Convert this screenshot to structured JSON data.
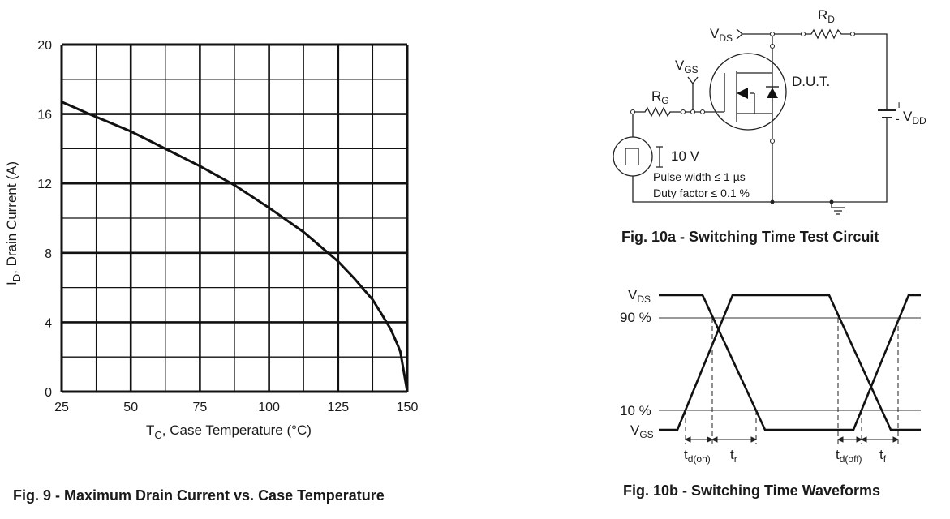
{
  "chart_data": {
    "type": "line",
    "title": "",
    "xlabel": {
      "main": "T",
      "sub": "C",
      "rest": ", Case Temperature (°C)"
    },
    "ylabel": {
      "main": "I",
      "sub": "D",
      "rest": ", Drain Current (A)"
    },
    "xlim": [
      25,
      150
    ],
    "ylim": [
      0,
      20
    ],
    "x_ticks": [
      "25",
      "50",
      "75",
      "100",
      "125",
      "150"
    ],
    "y_ticks": [
      "0",
      "4",
      "8",
      "12",
      "16",
      "20"
    ],
    "grid": true,
    "series": [
      {
        "x": [
          25,
          35,
          50,
          62.5,
          75,
          87.5,
          100,
          112.5,
          125,
          131,
          137.5,
          141,
          144,
          146.5,
          147.5,
          150
        ],
        "y": [
          16.7,
          16.0,
          15.0,
          14.0,
          13.0,
          11.9,
          10.6,
          9.2,
          7.5,
          6.5,
          5.3,
          4.4,
          3.6,
          2.7,
          2.3,
          0
        ]
      }
    ]
  },
  "fig9_caption": "Fig. 9 - Maximum Drain Current vs. Case Temperature",
  "circuit": {
    "vds": "V",
    "vds_sub": "DS",
    "rd": "R",
    "rd_sub": "D",
    "vgs": "V",
    "vgs_sub": "GS",
    "rg": "R",
    "rg_sub": "G",
    "dut": "D.U.T.",
    "vdd": "V",
    "vdd_sub": "DD",
    "plus": "+",
    "minus": "-",
    "pulse_amp": "10 V",
    "pulse_width": "Pulse width ≤ 1 µs",
    "duty": "Duty factor ≤ 0.1 %",
    "caption": "Fig. 10a - Switching Time Test Circuit"
  },
  "waveforms": {
    "vds": "V",
    "vds_sub": "DS",
    "p90": "90 %",
    "p10": "10 %",
    "vgs": "V",
    "vgs_sub": "GS",
    "td_on": "t",
    "td_on_sub": "d(on)",
    "tr": "t",
    "tr_sub": "r",
    "td_off": "t",
    "td_off_sub": "d(off)",
    "tf": "t",
    "tf_sub": "f",
    "caption": "Fig. 10b - Switching Time Waveforms"
  }
}
